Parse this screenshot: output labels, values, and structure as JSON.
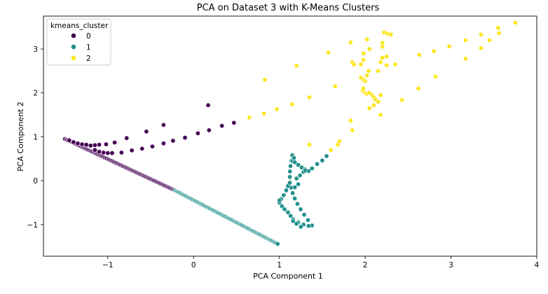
{
  "chart_data": {
    "type": "scatter",
    "title": "PCA on Dataset 3 with K-Means Clusters",
    "xlabel": "PCA Component 1",
    "ylabel": "PCA Component 2",
    "xlim": [
      -1.75,
      4.0
    ],
    "ylim": [
      -1.72,
      3.75
    ],
    "xticks": [
      -1,
      0,
      1,
      2,
      3,
      4
    ],
    "xtick_labels": [
      "−1",
      "0",
      "1",
      "2",
      "3",
      "4"
    ],
    "yticks": [
      -1,
      0,
      1,
      2,
      3
    ],
    "ytick_labels": [
      "−1",
      "0",
      "1",
      "2",
      "3"
    ],
    "grid": false,
    "legend": {
      "title": "kmeans_cluster",
      "placement": "top-left",
      "entries": [
        "0",
        "1",
        "2"
      ]
    },
    "series": [
      {
        "name": "0",
        "color": "#440154",
        "lines": [
          {
            "x0": -1.5,
            "y0": 0.95,
            "x1": -0.22,
            "y1": -0.22,
            "n": 95
          }
        ],
        "points": [
          [
            -1.45,
            0.92
          ],
          [
            -1.4,
            0.88
          ],
          [
            -1.35,
            0.85
          ],
          [
            -1.3,
            0.83
          ],
          [
            -1.25,
            0.82
          ],
          [
            -1.2,
            0.8
          ],
          [
            -1.15,
            0.81
          ],
          [
            -1.1,
            0.82
          ],
          [
            -1.02,
            0.83
          ],
          [
            -0.92,
            0.87
          ],
          [
            -0.78,
            0.97
          ],
          [
            -0.55,
            1.12
          ],
          [
            -0.35,
            1.27
          ],
          [
            -1.15,
            0.7
          ],
          [
            -1.1,
            0.66
          ],
          [
            -1.05,
            0.64
          ],
          [
            -1.0,
            0.63
          ],
          [
            -0.95,
            0.63
          ],
          [
            -0.84,
            0.64
          ],
          [
            -0.72,
            0.69
          ],
          [
            -0.6,
            0.73
          ],
          [
            -0.48,
            0.78
          ],
          [
            -0.35,
            0.85
          ],
          [
            -0.24,
            0.91
          ],
          [
            -0.1,
            0.98
          ],
          [
            0.05,
            1.08
          ],
          [
            0.18,
            1.15
          ],
          [
            0.33,
            1.25
          ],
          [
            0.47,
            1.32
          ],
          [
            0.17,
            1.72
          ]
        ]
      },
      {
        "name": "1",
        "color": "#21918c",
        "lines": [
          {
            "x0": -0.22,
            "y0": -0.22,
            "x1": 0.98,
            "y1": -1.44,
            "n": 100
          },
          {
            "x0": 1.15,
            "y0": 0.58,
            "x1": 1.38,
            "y1": -1.02,
            "n": 14,
            "curve": "c"
          }
        ],
        "points": [
          [
            1.0,
            -0.5
          ],
          [
            1.02,
            -0.42
          ],
          [
            1.05,
            -0.33
          ],
          [
            1.08,
            -0.22
          ],
          [
            1.1,
            -0.12
          ],
          [
            1.12,
            -0.05
          ],
          [
            1.0,
            -0.45
          ],
          [
            1.03,
            -0.58
          ],
          [
            1.06,
            -0.65
          ],
          [
            1.1,
            -0.72
          ],
          [
            1.13,
            -0.8
          ],
          [
            1.16,
            -0.88
          ],
          [
            1.22,
            -0.95
          ],
          [
            1.28,
            -1.0
          ],
          [
            1.34,
            -1.03
          ],
          [
            1.16,
            -0.92
          ],
          [
            1.2,
            -0.98
          ],
          [
            1.25,
            -1.05
          ],
          [
            1.2,
            0.05
          ],
          [
            1.24,
            0.12
          ],
          [
            1.28,
            0.2
          ],
          [
            1.22,
            -0.08
          ],
          [
            1.18,
            -0.15
          ],
          [
            1.15,
            0.45
          ],
          [
            1.18,
            0.42
          ],
          [
            1.22,
            0.36
          ],
          [
            1.26,
            0.3
          ],
          [
            1.3,
            0.26
          ],
          [
            1.34,
            0.22
          ],
          [
            1.38,
            0.28
          ],
          [
            1.44,
            0.38
          ],
          [
            1.5,
            0.46
          ],
          [
            1.55,
            0.56
          ],
          [
            1.15,
            0.58
          ],
          [
            1.17,
            0.52
          ],
          [
            1.3,
            0.23
          ]
        ]
      },
      {
        "name": "2",
        "color": "#fde725",
        "lines": [],
        "points": [
          [
            0.65,
            1.44
          ],
          [
            0.82,
            1.53
          ],
          [
            0.97,
            1.63
          ],
          [
            1.15,
            1.74
          ],
          [
            1.35,
            1.9
          ],
          [
            1.2,
            2.62
          ],
          [
            0.83,
            2.3
          ],
          [
            1.35,
            0.82
          ],
          [
            1.6,
            0.7
          ],
          [
            1.68,
            0.82
          ],
          [
            1.7,
            0.9
          ],
          [
            1.85,
            1.15
          ],
          [
            1.83,
            1.37
          ],
          [
            1.85,
            2.7
          ],
          [
            1.87,
            2.65
          ],
          [
            1.65,
            2.15
          ],
          [
            1.57,
            2.92
          ],
          [
            1.83,
            3.15
          ],
          [
            1.95,
            2.65
          ],
          [
            1.97,
            2.05
          ],
          [
            1.98,
            2.1
          ],
          [
            2.0,
            2.0
          ],
          [
            2.02,
            1.98
          ],
          [
            2.05,
            2.0
          ],
          [
            2.08,
            1.95
          ],
          [
            2.1,
            1.9
          ],
          [
            2.12,
            1.85
          ],
          [
            2.15,
            1.8
          ],
          [
            2.18,
            1.95
          ],
          [
            2.02,
            2.4
          ],
          [
            2.04,
            2.5
          ],
          [
            2.05,
            1.65
          ],
          [
            2.1,
            1.72
          ],
          [
            2.18,
            1.5
          ],
          [
            2.0,
            2.27
          ],
          [
            1.98,
            2.3
          ],
          [
            1.95,
            2.35
          ],
          [
            1.98,
            2.75
          ],
          [
            1.98,
            2.9
          ],
          [
            2.05,
            3.0
          ],
          [
            2.02,
            3.22
          ],
          [
            2.15,
            2.5
          ],
          [
            2.18,
            2.7
          ],
          [
            2.2,
            2.8
          ],
          [
            2.25,
            2.83
          ],
          [
            2.2,
            3.14
          ],
          [
            2.22,
            3.38
          ],
          [
            2.26,
            3.35
          ],
          [
            2.3,
            3.33
          ],
          [
            2.35,
            2.65
          ],
          [
            2.25,
            2.63
          ],
          [
            2.43,
            1.84
          ],
          [
            2.62,
            2.1
          ],
          [
            2.63,
            2.87
          ],
          [
            2.8,
            2.95
          ],
          [
            2.82,
            2.37
          ],
          [
            2.98,
            3.06
          ],
          [
            3.17,
            3.2
          ],
          [
            3.17,
            2.78
          ],
          [
            3.35,
            3.33
          ],
          [
            3.35,
            3.02
          ],
          [
            3.45,
            3.2
          ],
          [
            3.55,
            3.48
          ],
          [
            3.56,
            3.36
          ],
          [
            3.75,
            3.6
          ],
          [
            2.2,
            3.05
          ]
        ]
      }
    ]
  }
}
